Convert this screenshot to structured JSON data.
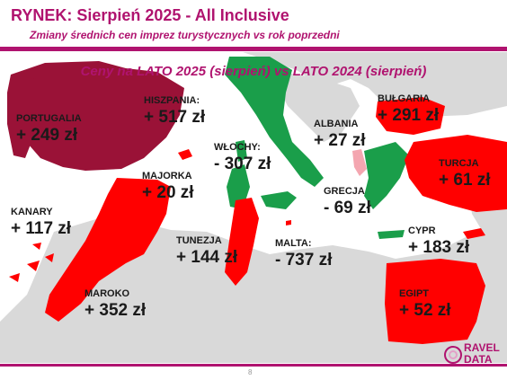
{
  "title": "RYNEK: Sierpień 2025 - All Inclusive",
  "subtitle": "Zmiany średnich cen imprez turystycznych vs rok poprzedni",
  "heading": "Ceny na LATO 2025 (sierpień) vs  LATO 2024 (sierpień)",
  "colors": {
    "brand": "#b0136f",
    "increase": "#ff0000",
    "decrease": "#1a9e4a",
    "spain_portugal": "#9a1237",
    "land": "#d9d9d9",
    "sea": "#ffffff",
    "greece_sea": "#f4a6b0"
  },
  "destinations": [
    {
      "key": "portugalia",
      "name": "PORTUGALIA",
      "value": "+ 249 zł",
      "change": 249
    },
    {
      "key": "hiszpania",
      "name": "HISZPANIA:",
      "value": "+ 517 zł",
      "change": 517
    },
    {
      "key": "wlochy",
      "name": "WŁOCHY:",
      "value": "- 307 zł",
      "change": -307
    },
    {
      "key": "albania",
      "name": "ALBANIA",
      "value": "+ 27 zł",
      "change": 27
    },
    {
      "key": "bulgaria",
      "name": "BUŁGARIA",
      "value": "+ 291 zł",
      "change": 291
    },
    {
      "key": "turcja",
      "name": "TURCJA",
      "value": "+ 61 zł",
      "change": 61
    },
    {
      "key": "majorka",
      "name": "MAJORKA",
      "value": "+ 20 zł",
      "change": 20
    },
    {
      "key": "grecja",
      "name": "GRECJA",
      "value": "- 69 zł",
      "change": -69
    },
    {
      "key": "kanary",
      "name": "KANARY",
      "value": "+ 117 zł",
      "change": 117
    },
    {
      "key": "cypr",
      "name": "CYPR",
      "value": "+ 183 zł",
      "change": 183
    },
    {
      "key": "tunezja",
      "name": "TUNEZJA",
      "value": "+ 144 zł",
      "change": 144
    },
    {
      "key": "malta",
      "name": "MALTA:",
      "value": "- 737 zł",
      "change": -737
    },
    {
      "key": "maroko",
      "name": "MAROKO",
      "value": "+ 352 zł",
      "change": 352
    },
    {
      "key": "egipt",
      "name": "EGIPT",
      "value": "+ 52 zł",
      "change": 52
    }
  ],
  "page_number": "8",
  "logo": {
    "line1": "RAVEL",
    "line2": "DATA",
    "icon": "travel-data-logo-icon"
  },
  "decor_icon": "concentric-circles-icon"
}
